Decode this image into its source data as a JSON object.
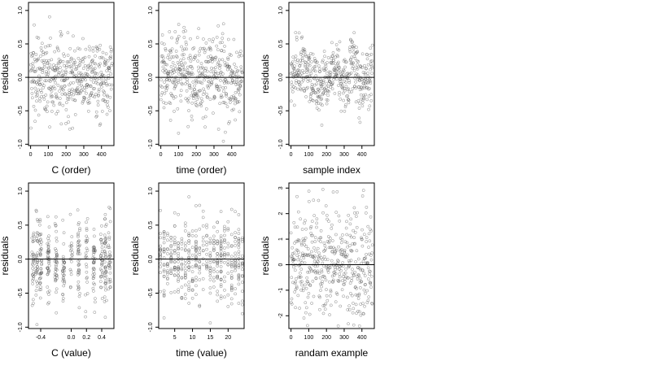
{
  "figure": {
    "chart_data": [
      {
        "type": "scatter",
        "xlabel": "C (order)",
        "ylabel": "residuals",
        "xlim": [
          -12,
          470
        ],
        "ylim": [
          -1.02,
          1.12
        ],
        "xticks": [
          0,
          100,
          200,
          300,
          400
        ],
        "xtick_labels": [
          "0",
          "100",
          "200",
          "300",
          "400"
        ],
        "yticks": [
          -1.0,
          -0.5,
          0.0,
          0.5,
          1.0
        ],
        "ytick_labels": [
          "-1.0",
          "-0.5",
          "0.0",
          "0.5",
          "1.0"
        ],
        "hline": 0,
        "n": 460,
        "point_pattern": "uniform"
      },
      {
        "type": "scatter",
        "xlabel": "time (order)",
        "ylabel": "residuals",
        "xlim": [
          -12,
          470
        ],
        "ylim": [
          -1.02,
          1.12
        ],
        "xticks": [
          0,
          100,
          200,
          300,
          400
        ],
        "xtick_labels": [
          "0",
          "100",
          "200",
          "300",
          "400"
        ],
        "yticks": [
          -1.0,
          -0.5,
          0.0,
          0.5,
          1.0
        ],
        "ytick_labels": [
          "-1.0",
          "-0.5",
          "0.0",
          "0.5",
          "1.0"
        ],
        "hline": 0,
        "n": 460,
        "point_pattern": "uniform"
      },
      {
        "type": "scatter",
        "xlabel": "sample index",
        "ylabel": "residuals",
        "xlim": [
          -12,
          470
        ],
        "ylim": [
          -1.02,
          1.12
        ],
        "xticks": [
          0,
          100,
          200,
          300,
          400
        ],
        "xtick_labels": [
          "0",
          "100",
          "200",
          "300",
          "400"
        ],
        "yticks": [
          -1.0,
          -0.5,
          0.0,
          0.5,
          1.0
        ],
        "ytick_labels": [
          "-1.0",
          "-0.5",
          "0.0",
          "0.5",
          "1.0"
        ],
        "hline": 0,
        "n": 460,
        "point_pattern": "wave"
      },
      {
        "type": "scatter",
        "xlabel": "C (value)",
        "ylabel": "residuals",
        "xlim": [
          -0.56,
          0.56
        ],
        "ylim": [
          -1.02,
          1.12
        ],
        "xticks": [
          -0.4,
          0.0,
          0.2,
          0.4
        ],
        "xtick_labels": [
          "-0.4",
          "0.0",
          "0.2",
          "0.4"
        ],
        "yticks": [
          -1.0,
          -0.5,
          0.0,
          0.5,
          1.0
        ],
        "ytick_labels": [
          "-1.0",
          "-0.5",
          "0.0",
          "0.5",
          "1.0"
        ],
        "hline": 0,
        "n": 460,
        "point_pattern": "clustered"
      },
      {
        "type": "scatter",
        "xlabel": "time (value)",
        "ylabel": "residuals",
        "xlim": [
          0.5,
          24.5
        ],
        "ylim": [
          -1.02,
          1.12
        ],
        "xticks": [
          5,
          10,
          15,
          20
        ],
        "xtick_labels": [
          "5",
          "10",
          "15",
          "20"
        ],
        "yticks": [
          -1.0,
          -0.5,
          0.0,
          0.5,
          1.0
        ],
        "ytick_labels": [
          "-1.0",
          "-0.5",
          "0.0",
          "0.5",
          "1.0"
        ],
        "hline": 0,
        "n": 460,
        "point_pattern": "discrete"
      },
      {
        "type": "scatter",
        "xlabel": "randam example",
        "ylabel": "residuals",
        "xlim": [
          -12,
          470
        ],
        "ylim": [
          -2.5,
          3.2
        ],
        "xticks": [
          0,
          100,
          200,
          300,
          400
        ],
        "xtick_labels": [
          "0",
          "100",
          "200",
          "300",
          "400"
        ],
        "yticks": [
          -2,
          -1,
          0,
          1,
          2,
          3
        ],
        "ytick_labels": [
          "-2",
          "-1",
          "0",
          "1",
          "2",
          "3"
        ],
        "hline": 0,
        "n": 460,
        "point_pattern": "gaussian"
      }
    ]
  }
}
